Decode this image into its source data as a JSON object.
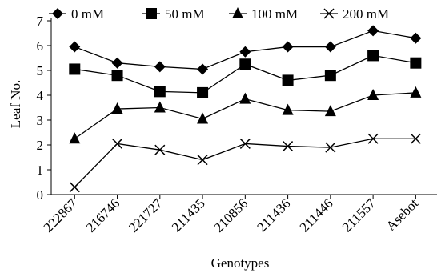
{
  "chart_data": {
    "type": "line",
    "categories": [
      "222867",
      "216746",
      "221727",
      "211435",
      "210856",
      "211436",
      "211446",
      "211557",
      "Asebot"
    ],
    "series": [
      {
        "name": "0 mM",
        "marker": "diamond",
        "values": [
          5.95,
          5.3,
          5.15,
          5.05,
          5.75,
          5.95,
          5.95,
          6.6,
          6.3
        ]
      },
      {
        "name": "50 mM",
        "marker": "square",
        "values": [
          5.05,
          4.8,
          4.15,
          4.1,
          5.25,
          4.6,
          4.8,
          5.6,
          5.3
        ]
      },
      {
        "name": "100 mM",
        "marker": "triangle",
        "values": [
          2.25,
          3.45,
          3.5,
          3.05,
          3.85,
          3.4,
          3.35,
          4.0,
          4.1
        ]
      },
      {
        "name": "200 mM",
        "marker": "x",
        "values": [
          0.3,
          2.05,
          1.8,
          1.4,
          2.05,
          1.95,
          1.9,
          2.25,
          2.25
        ]
      }
    ],
    "title": "",
    "xlabel": "Genotypes",
    "ylabel": "Leaf No.",
    "ylim": [
      0,
      7
    ],
    "yticks": [
      "0",
      "1",
      "2",
      "3",
      "4",
      "5",
      "6",
      "7"
    ],
    "grid": false,
    "legend": "top"
  }
}
